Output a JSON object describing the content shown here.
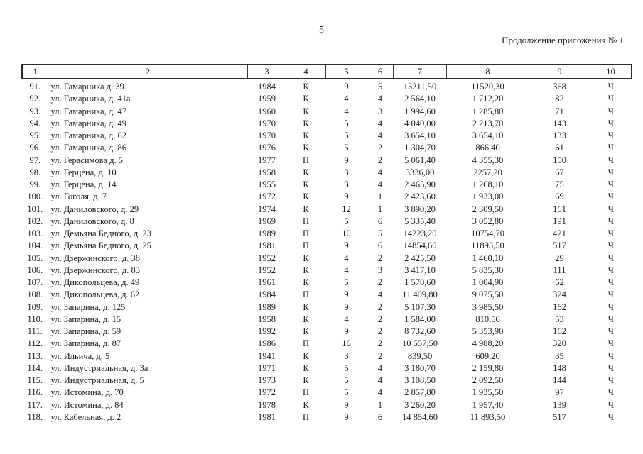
{
  "page": {
    "number": "5",
    "header_right": "Продолжение приложения № 1"
  },
  "table": {
    "column_headers": [
      "1",
      "2",
      "3",
      "4",
      "5",
      "6",
      "7",
      "8",
      "9",
      "10"
    ],
    "rows": [
      [
        "91.",
        "ул. Гамарника д. 39",
        "1984",
        "К",
        "9",
        "5",
        "15211,50",
        "11520,30",
        "368",
        "Ч"
      ],
      [
        "92.",
        "ул. Гамарника, д. 41а",
        "1959",
        "К",
        "4",
        "4",
        "2 564,10",
        "1 712,20",
        "82",
        "Ч"
      ],
      [
        "93.",
        "ул. Гамарника, д. 47",
        "1960",
        "К",
        "4",
        "3",
        "1 994,60",
        "1 285,80",
        "71",
        "Ч"
      ],
      [
        "94.",
        "ул. Гамарника, д. 49",
        "1970",
        "К",
        "5",
        "4",
        "4 040,00",
        "2 213,70",
        "143",
        "Ч"
      ],
      [
        "95.",
        "ул. Гамарника, д. 62",
        "1970",
        "К",
        "5",
        "4",
        "3 654,10",
        "3 654,10",
        "133",
        "Ч"
      ],
      [
        "96.",
        "ул. Гамарника, д. 86",
        "1976",
        "К",
        "5",
        "2",
        "1 304,70",
        "866,40",
        "61",
        "Ч"
      ],
      [
        "97.",
        "ул. Герасимова д. 5",
        "1977",
        "П",
        "9",
        "2",
        "5 061,40",
        "4 355,30",
        "150",
        "Ч"
      ],
      [
        "98.",
        "ул. Герцена, д. 10",
        "1958",
        "К",
        "3",
        "4",
        "3336,00",
        "2257,20",
        "67",
        "Ч"
      ],
      [
        "99.",
        "ул. Герцена, д. 14",
        "1955",
        "К",
        "3",
        "4",
        "2 465,90",
        "1 268,10",
        "75",
        "Ч"
      ],
      [
        "100.",
        "ул. Гоголя, д. 7",
        "1972",
        "К",
        "9",
        "1",
        "2 423,60",
        "1 933,00",
        "69",
        "Ч"
      ],
      [
        "101.",
        "ул. Даниловского, д. 29",
        "1974",
        "К",
        "12",
        "1",
        "3 890,20",
        "2 309,50",
        "161",
        "Ч"
      ],
      [
        "102.",
        "ул. Даниловского, д. 8",
        "1969",
        "П",
        "5",
        "6",
        "5 335,40",
        "3 052,80",
        "191",
        "Ч"
      ],
      [
        "103.",
        "ул. Демьяна Бедного, д. 23",
        "1989",
        "П",
        "10",
        "5",
        "14223,20",
        "10754,70",
        "421",
        "Ч"
      ],
      [
        "104.",
        "ул. Демьяна Бедного, д. 25",
        "1981",
        "П",
        "9",
        "6",
        "14854,60",
        "11893,50",
        "517",
        "Ч"
      ],
      [
        "105.",
        "ул. Дзержинского, д. 38",
        "1952",
        "К",
        "4",
        "2",
        "2 425,50",
        "1 460,10",
        "29",
        "Ч"
      ],
      [
        "106.",
        "ул. Дзержинского, д. 83",
        "1952",
        "К",
        "4",
        "3",
        "3 417,10",
        "5 835,30",
        "111",
        "Ч"
      ],
      [
        "107.",
        "ул. Дикопольцева, д. 49",
        "1961",
        "К",
        "5",
        "2",
        "1 570,60",
        "1 004,90",
        "62",
        "Ч"
      ],
      [
        "108.",
        "ул. Дикопольцева, д. 62",
        "1984",
        "П",
        "9",
        "4",
        "11 409,80",
        "9 075,50",
        "324",
        "Ч"
      ],
      [
        "109.",
        "ул. Запарина, д. 125",
        "1989",
        "К",
        "9",
        "2",
        "5 107,30",
        "3 985,50",
        "162",
        "Ч"
      ],
      [
        "110.",
        "ул. Запарина, д. 15",
        "1958",
        "К",
        "4",
        "2",
        "1 584,00",
        "810,50",
        "53",
        "Ч"
      ],
      [
        "111.",
        "ул. Запарина, д. 59",
        "1992",
        "К",
        "9",
        "2",
        "8 732,60",
        "5 353,90",
        "162",
        "Ч"
      ],
      [
        "112.",
        "ул. Запарина, д. 87",
        "1986",
        "П",
        "16",
        "2",
        "10 557,50",
        "4 988,20",
        "320",
        "Ч"
      ],
      [
        "113.",
        "ул. Ильича, д. 5",
        "1941",
        "К",
        "3",
        "2",
        "839,50",
        "609,20",
        "35",
        "Ч"
      ],
      [
        "114.",
        "ул. Индустриальная, д. 3а",
        "1971",
        "К",
        "5",
        "4",
        "3 180,70",
        "2 159,80",
        "148",
        "Ч"
      ],
      [
        "115.",
        "ул. Индустриальная, д. 5",
        "1973",
        "К",
        "5",
        "4",
        "3 108,50",
        "2 092,50",
        "144",
        "Ч"
      ],
      [
        "116.",
        "ул. Истомина, д. 70",
        "1972",
        "П",
        "5",
        "4",
        "2 857,80",
        "1 935,50",
        "97",
        "Ч"
      ],
      [
        "117.",
        "ул. Истомина, д. 84",
        "1978",
        "К",
        "9",
        "1",
        "3 260,20",
        "1 957,40",
        "139",
        "Ч"
      ],
      [
        "118.",
        "ул. Кабельная, д. 2",
        "1981",
        "П",
        "9",
        "6",
        "14 854,60",
        "11 893,50",
        "517",
        "Ч"
      ]
    ]
  }
}
